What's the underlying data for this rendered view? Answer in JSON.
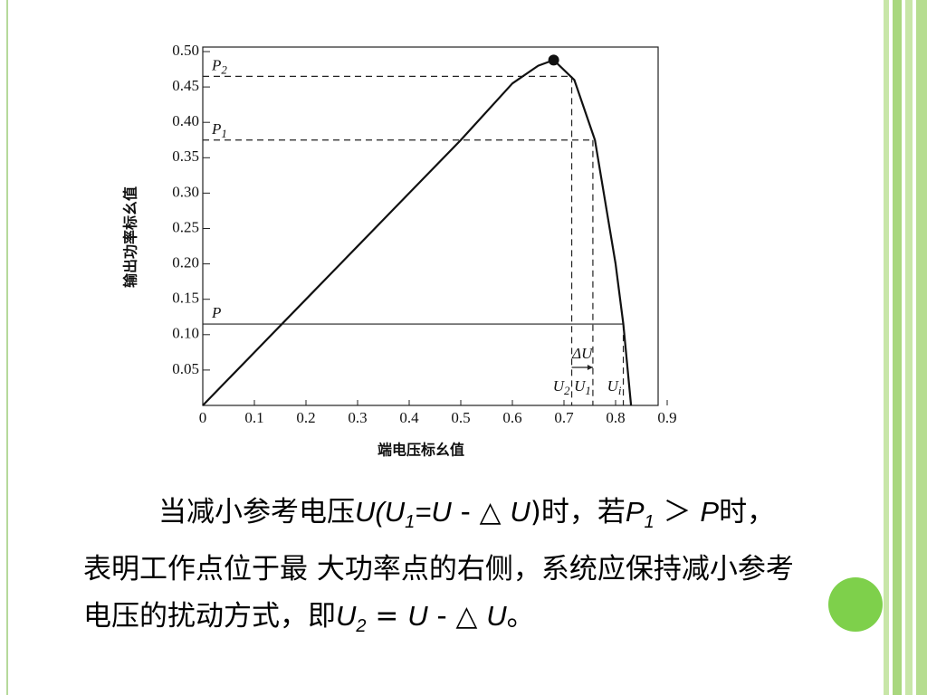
{
  "chart_data": {
    "type": "line",
    "y_label": "输出功率标幺值",
    "x_label": "端电压标幺值",
    "x": [
      0,
      0.1,
      0.2,
      0.3,
      0.4,
      0.5,
      0.6,
      0.65,
      0.68,
      0.72,
      0.76,
      0.8,
      0.815,
      0.83
    ],
    "values": [
      0,
      0.075,
      0.15,
      0.225,
      0.3,
      0.375,
      0.455,
      0.48,
      0.488,
      0.46,
      0.375,
      0.2,
      0.115,
      0
    ],
    "color": "#111111",
    "xlim": [
      0,
      0.9
    ],
    "ylim": [
      0,
      0.5
    ],
    "xticks": [
      0,
      0.1,
      0.2,
      0.3,
      0.4,
      0.5,
      0.6,
      0.7,
      0.8,
      0.9
    ],
    "yticks": [
      0.05,
      {
        "value": 0.1,
        "label": "0.10"
      },
      0.15,
      {
        "value": 0.2,
        "label": "0.20"
      },
      0.25,
      {
        "value": 0.3,
        "label": "0.30"
      },
      0.35,
      {
        "value": 0.4,
        "label": "0.40"
      },
      0.45,
      {
        "value": 0.5,
        "label": "0.50"
      }
    ],
    "operating_points": [
      {
        "p_label": "P",
        "p_sub": "2",
        "p": 0.465,
        "u_label": "U",
        "u_sub": "2",
        "u": 0.715,
        "dashed": true
      },
      {
        "p_label": "P",
        "p_sub": "1",
        "p": 0.375,
        "u_label": "U",
        "u_sub": "1",
        "u": 0.756,
        "dashed": true
      },
      {
        "p_label": "P",
        "p_sub": "",
        "p": 0.115,
        "u_label": "U",
        "u_sub": "i",
        "u": 0.815,
        "dashed": false
      }
    ],
    "delta_label": "ΔU"
  },
  "body": {
    "runs": [
      "当减小参考电压",
      "U",
      "(",
      "U",
      "1",
      "=U",
      " - ",
      "△ ",
      "U",
      ")时，若",
      "P",
      "1",
      " ＞ ",
      "P",
      "时，表明工作点位于最 大功率点的右侧，系统应保持减小参考电压的扰动方式，即",
      "U",
      "2",
      " = ",
      "U",
      " - ",
      "△ ",
      "U",
      "。"
    ]
  }
}
